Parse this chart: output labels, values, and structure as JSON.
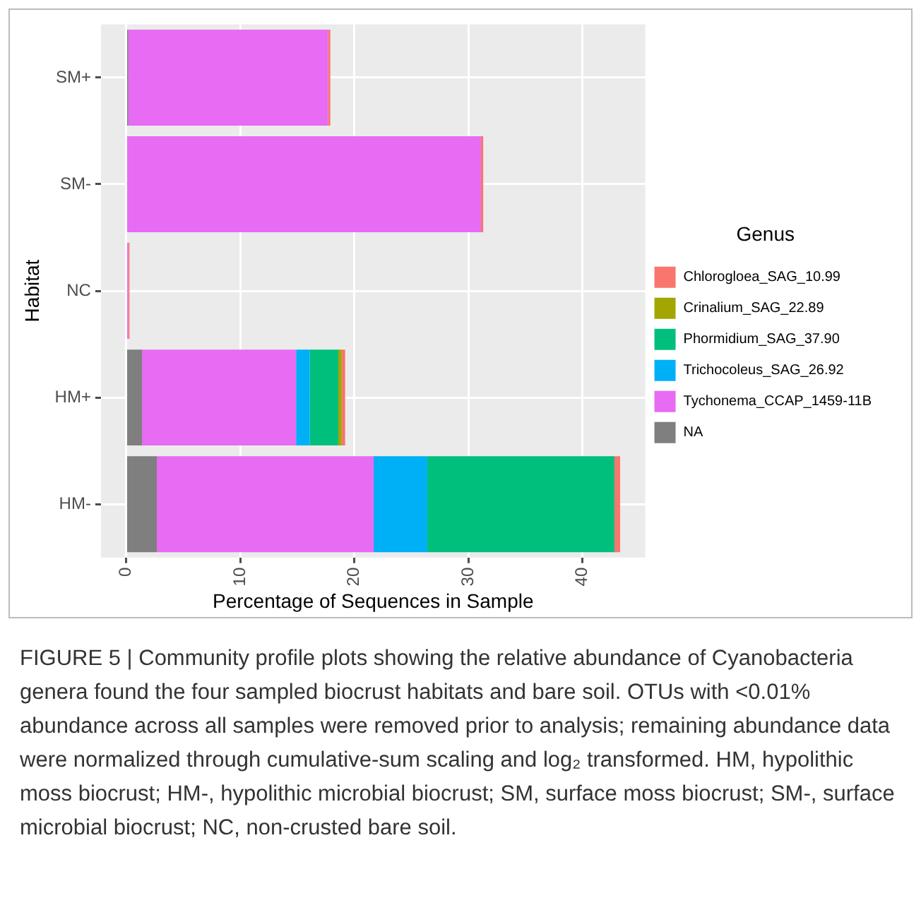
{
  "chart_data": {
    "type": "bar",
    "orientation": "horizontal",
    "stacked": true,
    "categories": [
      "SM+",
      "SM-",
      "NC",
      "HM+",
      "HM-"
    ],
    "series": [
      {
        "name": "NA",
        "color": "#7f7f7f",
        "values": [
          0.2,
          0,
          0,
          1.4,
          2.7
        ]
      },
      {
        "name": "Tychonema_CCAP_1459-11B",
        "color": "#e76bf3",
        "values": [
          17.5,
          31.1,
          0.2,
          13.5,
          19.0
        ]
      },
      {
        "name": "Trichocoleus_SAG_26.92",
        "color": "#00b0f6",
        "values": [
          0,
          0,
          0,
          1.2,
          4.7
        ]
      },
      {
        "name": "Phormidium_SAG_37.90",
        "color": "#00bf7d",
        "values": [
          0,
          0,
          0,
          2.5,
          16.4
        ]
      },
      {
        "name": "Crinalium_SAG_22.89",
        "color": "#a3a500",
        "values": [
          0,
          0,
          0,
          0.3,
          0
        ]
      },
      {
        "name": "Chlorogloea_SAG_10.99",
        "color": "#f8766d",
        "values": [
          0.2,
          0.2,
          0.1,
          0.3,
          0.5
        ]
      }
    ],
    "xlabel": "Percentage of Sequences in Sample",
    "ylabel": "Habitat",
    "legend_title": "Genus",
    "xlim": [
      -2.2,
      45.5
    ],
    "xticks": [
      0,
      10,
      20,
      30,
      40
    ],
    "grid": true,
    "legend": "right",
    "annotations": [
      "FIGURE 5 | Community profile plots showing the relative abundance of Cyanobacteria genera found the four sampled biocrust habitats and bare soil. OTUs with <0.01% abundance across all samples were removed prior to analysis; remaining abundance data were normalized through cumulative-sum scaling and log₂ transformed. HM, hypolithic moss biocrust; HM-, hypolithic microbial biocrust; SM, surface moss biocrust; SM-, surface microbial biocrust; NC, non-crusted bare soil."
    ]
  }
}
